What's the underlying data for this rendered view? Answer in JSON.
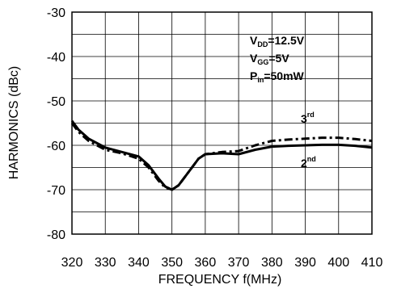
{
  "chart_data": {
    "type": "line",
    "xlabel": "FREQUENCY f(MHz)",
    "ylabel": "HARMONICS (dBc)",
    "xlim": [
      320,
      410
    ],
    "ylim": [
      -80,
      -30
    ],
    "x_ticks": [
      "320",
      "330",
      "340",
      "350",
      "360",
      "370",
      "380",
      "390",
      "400",
      "410"
    ],
    "y_ticks": [
      "-30",
      "-40",
      "-50",
      "-60",
      "-70",
      "-80"
    ],
    "grid": true,
    "annotations": [
      {
        "main": "V",
        "sub": "DD",
        "rest": "=12.5V"
      },
      {
        "main": "V",
        "sub": "GG",
        "rest": "=5V"
      },
      {
        "main": "P",
        "sub": "in",
        "rest": "=50mW"
      }
    ],
    "series": [
      {
        "name": "3rd",
        "label_main": "3",
        "label_sup": "rd",
        "style": "dash-dot",
        "x": [
          320,
          322,
          325,
          330,
          335,
          340,
          343,
          346,
          348,
          350,
          352,
          355,
          358,
          360,
          365,
          370,
          375,
          380,
          385,
          390,
          395,
          400,
          405,
          410
        ],
        "y": [
          -55,
          -57,
          -59,
          -61,
          -61.8,
          -63,
          -65,
          -68,
          -69.5,
          -70,
          -69,
          -66,
          -63,
          -62,
          -61.5,
          -61.3,
          -60,
          -59,
          -58.7,
          -58.5,
          -58.3,
          -58.3,
          -58.6,
          -59
        ]
      },
      {
        "name": "2nd",
        "label_main": "2",
        "label_sup": "nd",
        "style": "solid",
        "x": [
          320,
          322,
          325,
          330,
          335,
          340,
          343,
          346,
          348,
          350,
          352,
          355,
          358,
          360,
          365,
          370,
          375,
          380,
          385,
          390,
          395,
          400,
          405,
          410
        ],
        "y": [
          -54.5,
          -56.5,
          -58.5,
          -60.5,
          -61.5,
          -62.5,
          -64.5,
          -67.5,
          -69.3,
          -70,
          -69,
          -66,
          -63,
          -62,
          -61.8,
          -62,
          -61,
          -60.3,
          -60.1,
          -60,
          -59.9,
          -59.9,
          -60.1,
          -60.5
        ]
      }
    ]
  }
}
